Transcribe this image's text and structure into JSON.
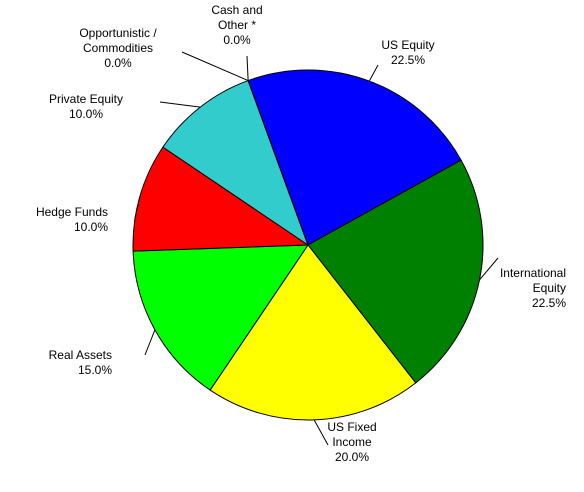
{
  "chart_data": {
    "type": "pie",
    "categories": [
      "US Equity",
      "International\nEquity",
      "US Fixed\nIncome",
      "Real Assets",
      "Hedge Funds",
      "Private Equity",
      "Opportunistic /\nCommodities",
      "Cash and\nOther *"
    ],
    "values": [
      22.5,
      22.5,
      20,
      15,
      10,
      10,
      0,
      0
    ],
    "value_labels": [
      "22.5%",
      "22.5%",
      "20.0%",
      "15.0%",
      "10.0%",
      "10.0%",
      "0.0%",
      "0.0%"
    ],
    "colors": [
      "#0000ff",
      "#008000",
      "#ffff00",
      "#00ff00",
      "#ff0000",
      "#33cccc",
      "#993366",
      "#ff9900"
    ]
  }
}
